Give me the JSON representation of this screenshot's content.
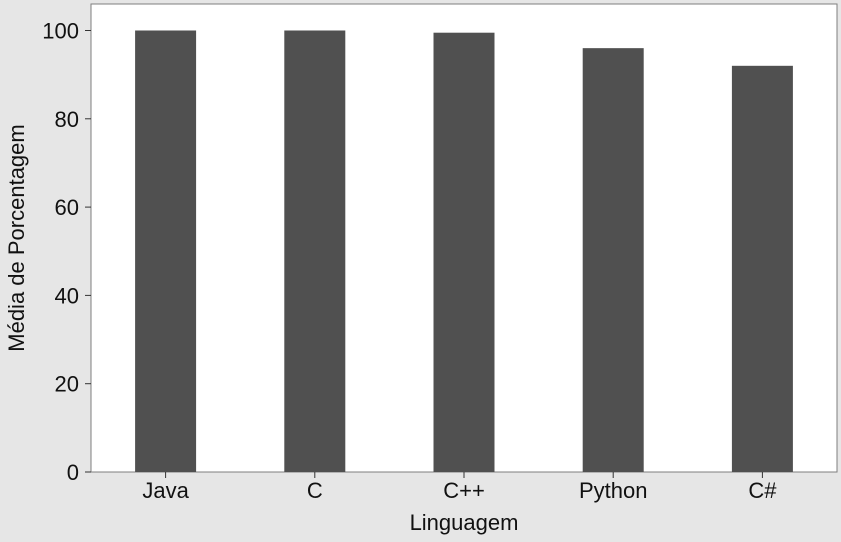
{
  "chart_data": {
    "type": "bar",
    "categories": [
      "Java",
      "C",
      "C++",
      "Python",
      "C#"
    ],
    "values": [
      100,
      100,
      99.5,
      96,
      92
    ],
    "xlabel": "Linguagem",
    "ylabel": "Média de Porcentagem",
    "ylim": [
      0,
      106
    ],
    "yticks": [
      0,
      20,
      40,
      60,
      80,
      100
    ],
    "bar_color": "#505050",
    "plot_background": "#ffffff",
    "figure_background": "#e6e6e6",
    "grid": false,
    "legend": "none"
  }
}
